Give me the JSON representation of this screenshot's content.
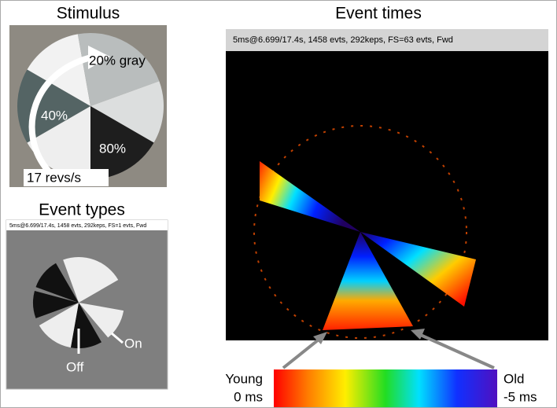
{
  "stimulus": {
    "title": "Stimulus",
    "labels": [
      "20% gray",
      "40%",
      "80%"
    ],
    "speed": "17 revs/s"
  },
  "event_types": {
    "title": "Event types",
    "header": "5ms@6.699/17.4s, 1458 evts, 292keps, FS=1 evts,  Fwd",
    "labels": [
      "On",
      "Off"
    ]
  },
  "event_times": {
    "title": "Event times",
    "header": "5ms@6.699/17.4s, 1458 evts, 292keps, FS=63 evts,  Fwd"
  },
  "colorbar": {
    "young": "Young",
    "young_time": "0 ms",
    "old": "Old",
    "old_time": "-5 ms"
  }
}
